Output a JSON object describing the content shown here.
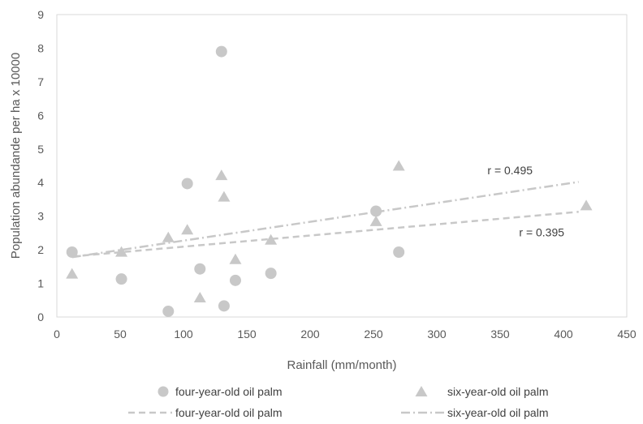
{
  "chart_data": {
    "type": "scatter",
    "xlabel": "Rainfall (mm/month)",
    "ylabel": "Population abundande per ha  x 10000",
    "xlim": [
      0,
      450
    ],
    "ylim": [
      0,
      9
    ],
    "xticks": [
      0,
      50,
      100,
      150,
      200,
      250,
      300,
      350,
      400,
      450
    ],
    "yticks": [
      0,
      1,
      2,
      3,
      4,
      5,
      6,
      7,
      8,
      9
    ],
    "grid": false,
    "legend_position": "bottom",
    "series": [
      {
        "name": "four-year-old oil palm",
        "marker": "circle",
        "color": "#c8c8c8",
        "points": [
          {
            "x": 12,
            "y": 1.93
          },
          {
            "x": 51,
            "y": 1.13
          },
          {
            "x": 88,
            "y": 0.17
          },
          {
            "x": 103,
            "y": 3.97
          },
          {
            "x": 113,
            "y": 1.43
          },
          {
            "x": 130,
            "y": 7.9
          },
          {
            "x": 132,
            "y": 0.33
          },
          {
            "x": 141,
            "y": 1.09
          },
          {
            "x": 169,
            "y": 1.3
          },
          {
            "x": 252,
            "y": 3.15
          },
          {
            "x": 270,
            "y": 1.93
          }
        ]
      },
      {
        "name": "six-year-old oil palm",
        "marker": "triangle",
        "color": "#c8c8c8",
        "points": [
          {
            "x": 12,
            "y": 1.27
          },
          {
            "x": 51,
            "y": 1.92
          },
          {
            "x": 88,
            "y": 2.35
          },
          {
            "x": 103,
            "y": 2.58
          },
          {
            "x": 113,
            "y": 0.56
          },
          {
            "x": 130,
            "y": 4.2
          },
          {
            "x": 132,
            "y": 3.56
          },
          {
            "x": 141,
            "y": 1.7
          },
          {
            "x": 169,
            "y": 2.28
          },
          {
            "x": 252,
            "y": 2.83
          },
          {
            "x": 270,
            "y": 4.48
          },
          {
            "x": 418,
            "y": 3.3
          }
        ]
      }
    ],
    "trendlines": [
      {
        "name": "four-year-old oil palm",
        "dash": "dashed",
        "color": "#c8c8c8",
        "x": [
          12,
          412
        ],
        "y": [
          1.8,
          3.13
        ]
      },
      {
        "name": "six-year-old oil palm",
        "dash": "dash-dot",
        "color": "#c8c8c8",
        "x": [
          12,
          412
        ],
        "y": [
          1.78,
          4.02
        ]
      }
    ],
    "annotations": [
      {
        "text": "r = 0.495",
        "x": 340,
        "y": 4.25
      },
      {
        "text": "r = 0.395",
        "x": 365,
        "y": 2.4
      }
    ]
  }
}
